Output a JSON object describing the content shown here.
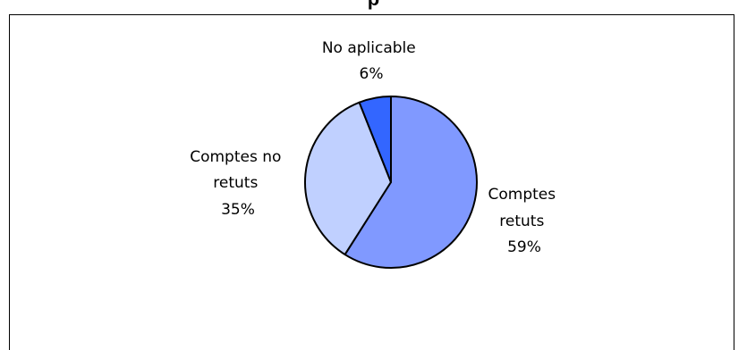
{
  "chart_data": {
    "type": "pie",
    "title": "",
    "slices": [
      {
        "label_lines": [
          "Comptes",
          "retuts"
        ],
        "value": 59,
        "value_label": "59%",
        "color": "#8099ff"
      },
      {
        "label_lines": [
          "Comptes no",
          "retuts"
        ],
        "value": 35,
        "value_label": "35%",
        "color": "#c0d0ff"
      },
      {
        "label_lines": [
          "No aplicable"
        ],
        "value": 6,
        "value_label": "6%",
        "color": "#3366ff"
      }
    ]
  },
  "header": {
    "title_fragment": "p"
  }
}
